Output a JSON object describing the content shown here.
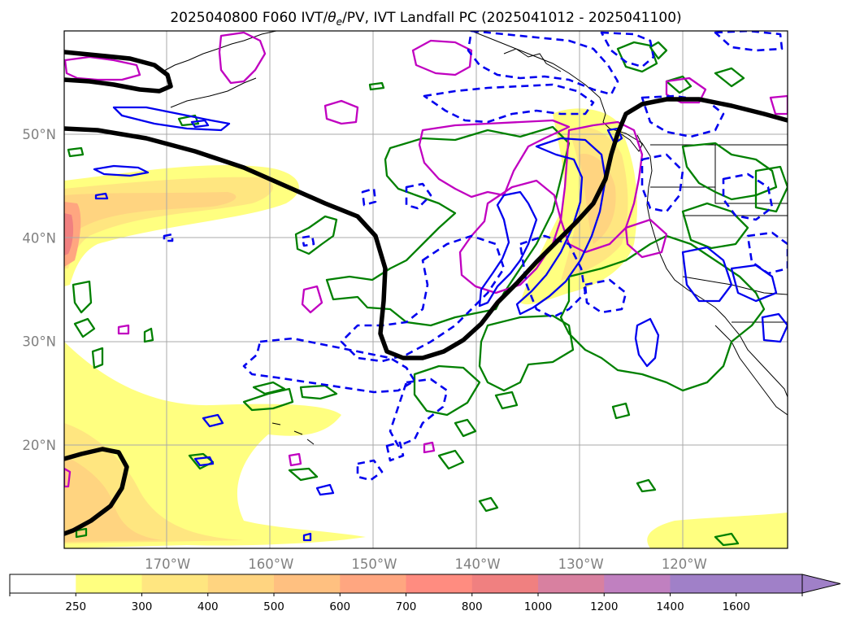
{
  "figure": {
    "title_prefix": "2025040800 F060 IVT/",
    "title_theta": "θ",
    "title_theta_sub": "e",
    "title_suffix": "/PV, IVT Landfall PC (2025041012 - 2025041100)"
  },
  "map": {
    "lon_range": [
      -180,
      -110
    ],
    "lat_range": [
      10,
      60
    ],
    "lat_ticks": [
      {
        "value": 20,
        "label": "20°N"
      },
      {
        "value": 30,
        "label": "30°N"
      },
      {
        "value": 40,
        "label": "40°N"
      },
      {
        "value": 50,
        "label": "50°N"
      }
    ],
    "lon_ticks": [
      {
        "value": -170,
        "label": "170°W"
      },
      {
        "value": -160,
        "label": "160°W"
      },
      {
        "value": -150,
        "label": "150°W"
      },
      {
        "value": -140,
        "label": "140°W"
      },
      {
        "value": -130,
        "label": "130°W"
      },
      {
        "value": -120,
        "label": "120°W"
      }
    ],
    "grid": true,
    "layers": [
      {
        "name": "IVT filled contours",
        "colors": [
          "#ffff80",
          "#ffe680",
          "#ffd480",
          "#ffc080",
          "#ffa680",
          "#ff8c80",
          "#f08080",
          "#d880a0",
          "#c080c0",
          "#a080c8"
        ]
      },
      {
        "name": "PV contour",
        "color": "#000000"
      },
      {
        "name": "positive anomaly contour",
        "color": "#008000",
        "hatched": true
      },
      {
        "name": "negative anomaly contour",
        "color": "#0000ee"
      },
      {
        "name": "landfall PC contour",
        "color": "#c000c0",
        "hatched": true
      }
    ]
  },
  "colorbar": {
    "levels": [
      "250",
      "300",
      "400",
      "500",
      "600",
      "700",
      "800",
      "1000",
      "1200",
      "1400",
      "1600"
    ],
    "colors": [
      "#ffffff",
      "#ffff80",
      "#ffe680",
      "#ffd480",
      "#ffc080",
      "#ffa680",
      "#ff8c80",
      "#f08080",
      "#d880a0",
      "#c080c0",
      "#a080c8",
      "#a080c8"
    ],
    "extend": "max"
  }
}
